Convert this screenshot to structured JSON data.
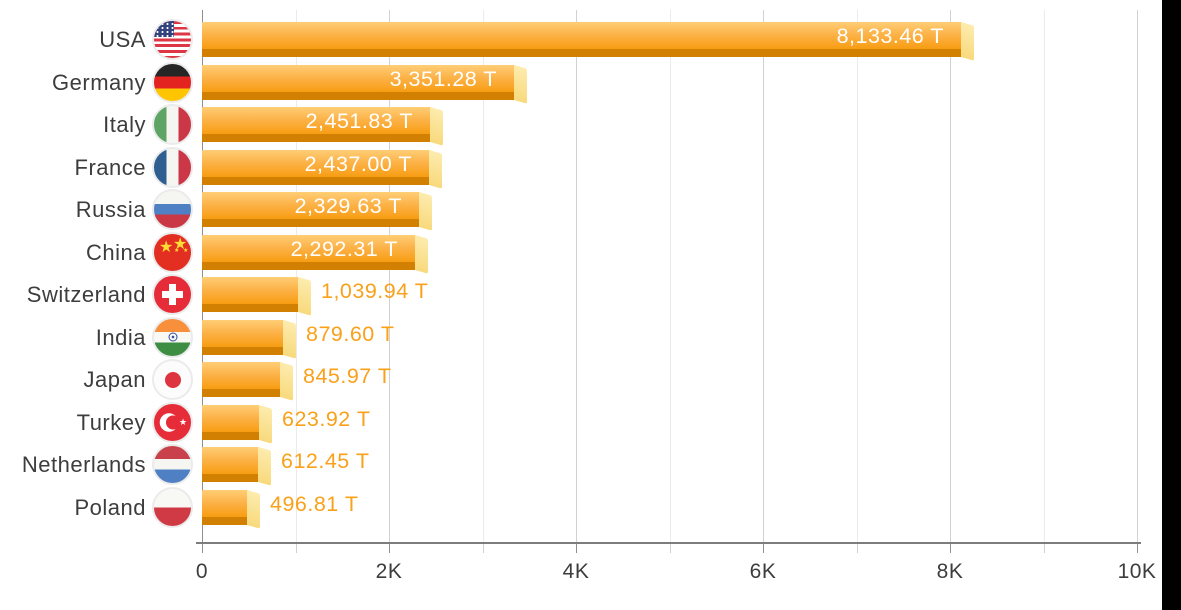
{
  "chart_data": {
    "type": "bar",
    "orientation": "horizontal",
    "title": "",
    "xlabel": "",
    "ylabel": "",
    "unit": "T",
    "categories": [
      "USA",
      "Germany",
      "Italy",
      "France",
      "Russia",
      "China",
      "Switzerland",
      "India",
      "Japan",
      "Turkey",
      "Netherlands",
      "Poland"
    ],
    "values": [
      8133.46,
      3351.28,
      2451.83,
      2437.0,
      2329.63,
      2292.31,
      1039.94,
      879.6,
      845.97,
      623.92,
      612.45,
      496.81
    ],
    "value_labels": [
      "8,133.46 T",
      "3,351.28 T",
      "2,451.83 T",
      "2,437.00 T",
      "2,329.63 T",
      "2,292.31 T",
      "1,039.94 T",
      "879.60 T",
      "845.97 T",
      "623.92 T",
      "612.45 T",
      "496.81 T"
    ],
    "flags": [
      "usa",
      "germany",
      "italy",
      "france",
      "russia",
      "china",
      "switzerland",
      "india",
      "japan",
      "turkey",
      "netherlands",
      "poland"
    ],
    "xlim": [
      0,
      10000
    ],
    "x_tick_values": [
      0,
      2000,
      4000,
      6000,
      8000,
      10000
    ],
    "x_ticks": [
      "0",
      "2K",
      "4K",
      "6K",
      "8K",
      "10K"
    ],
    "minor_grid_step": 1000,
    "grid": true,
    "legend": false
  },
  "colors": {
    "bar_gradient_top": "#FFCE76",
    "bar_gradient_bottom": "#F89D12",
    "bar_shadow": "#D28001",
    "bar_cap_top": "#FDECAE",
    "bar_cap_bottom": "#F8D97C",
    "value_inside_text": "#FFFFFF",
    "value_outside_text": "#F9A11B",
    "country_label_text": "#3D3D3D",
    "axis_text": "#3D3D3D",
    "grid_major": "#D2D2D2",
    "grid_minor": "#EBEBEB",
    "axis_line": "#7D7D7D",
    "background": "#FFFFFF",
    "right_edge_strip": "#000000"
  }
}
